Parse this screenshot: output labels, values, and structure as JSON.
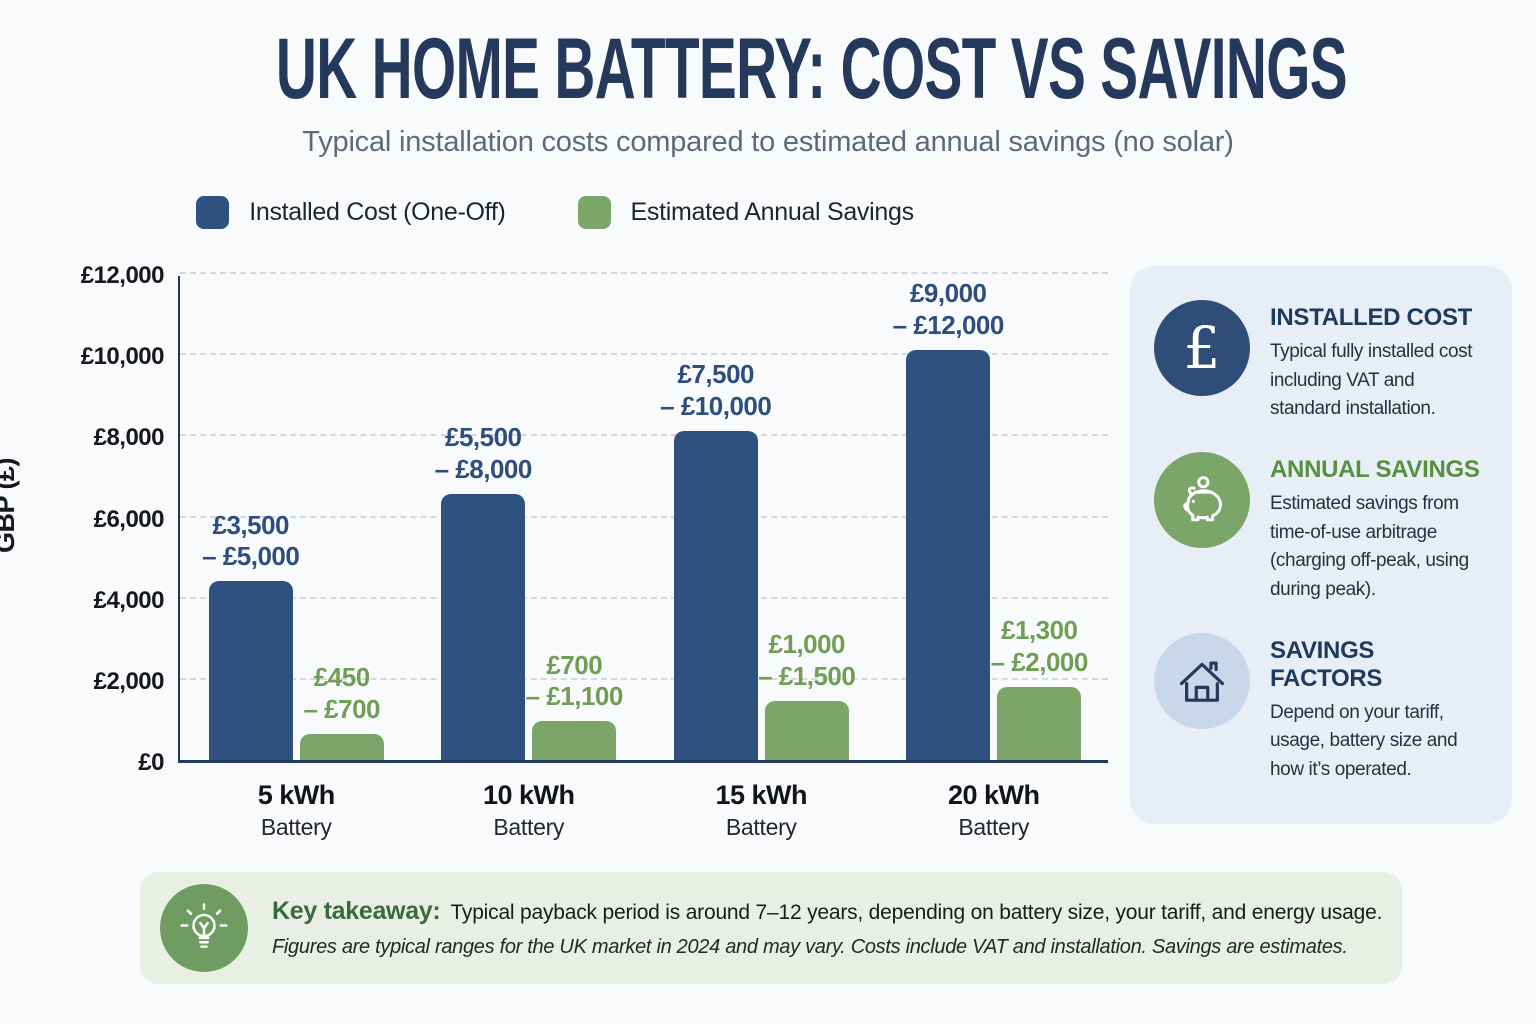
{
  "page": {
    "title": "UK HOME BATTERY: COST VS SAVINGS",
    "subtitle": "Typical installation costs compared to estimated annual savings (no solar)",
    "background_color": "#F9FAFB"
  },
  "legend": {
    "items": [
      {
        "label": "Installed Cost (One-Off)",
        "color": "#2E5180"
      },
      {
        "label": "Estimated Annual Savings",
        "color": "#7CA569"
      }
    ]
  },
  "chart_data": {
    "type": "bar",
    "title": "UK HOME BATTERY: COST VS SAVINGS",
    "subtitle": "Typical installation costs compared to estimated annual savings (no solar)",
    "categories": [
      "5 kWh",
      "10 kWh",
      "15 kWh",
      "20 kWh"
    ],
    "category_subline": "Battery",
    "xlabel": "",
    "ylabel": "GBP (£)",
    "ylim": [
      0,
      12000
    ],
    "yticks": [
      {
        "label": "£12,000",
        "value": 12000
      },
      {
        "label": "£10,000",
        "value": 10000
      },
      {
        "label": "£8,000",
        "value": 8000
      },
      {
        "label": "£6,000",
        "value": 6000
      },
      {
        "label": "£4,000",
        "value": 4000
      },
      {
        "label": "£2,000",
        "value": 2000
      },
      {
        "label": "£0",
        "value": 0
      }
    ],
    "grid": "horizontal-dashed",
    "legend_position": "top",
    "series": [
      {
        "name": "Installed Cost (One-Off)",
        "color": "#2E5180",
        "label_color": "#2E4E7E",
        "values": [
          4400,
          6550,
          8100,
          10100
        ],
        "range_labels": [
          [
            "£3,500",
            "– £5,000"
          ],
          [
            "£5,500",
            "– £8,000"
          ],
          [
            "£7,500",
            "– £10,000"
          ],
          [
            "£9,000",
            "– £12,000"
          ]
        ]
      },
      {
        "name": "Estimated Annual Savings",
        "color": "#7CA569",
        "label_color": "#6F9E55",
        "values": [
          650,
          950,
          1450,
          1800
        ],
        "range_labels": [
          [
            "£450",
            "– £700"
          ],
          [
            "£700",
            "– £1,100"
          ],
          [
            "£1,000",
            "– £1,500"
          ],
          [
            "£1,300",
            "– £2,000"
          ]
        ]
      }
    ]
  },
  "sidebar": {
    "cards": [
      {
        "icon": "pound-icon",
        "icon_bg": "#2E4E79",
        "heading": "INSTALLED COST",
        "heading_color": "#1E3A5F",
        "body": "Typical fully installed cost including VAT and standard installation."
      },
      {
        "icon": "piggy-bank-icon",
        "icon_bg": "#7CA569",
        "heading": "ANNUAL SAVINGS",
        "heading_color": "#55913F",
        "body": "Estimated savings from time-of-use arbitrage (charging off-peak, using during peak)."
      },
      {
        "icon": "house-icon",
        "icon_bg": "#C9D7EA",
        "heading": "SAVINGS FACTORS",
        "heading_color": "#1E3A5F",
        "body": "Depend on your tariff, usage, battery size and how it’s operated."
      }
    ]
  },
  "footer": {
    "icon": "lightbulb-icon",
    "icon_bg": "#6E9C61",
    "kicker": "Key takeaway:",
    "kicker_color": "#3A6B3E",
    "text": "Typical payback period is around 7–12 years, depending on battery size, your tariff, and energy usage.",
    "note": "Figures are typical ranges for the UK market in 2024 and may vary. Costs include VAT and installation. Savings are estimates."
  }
}
